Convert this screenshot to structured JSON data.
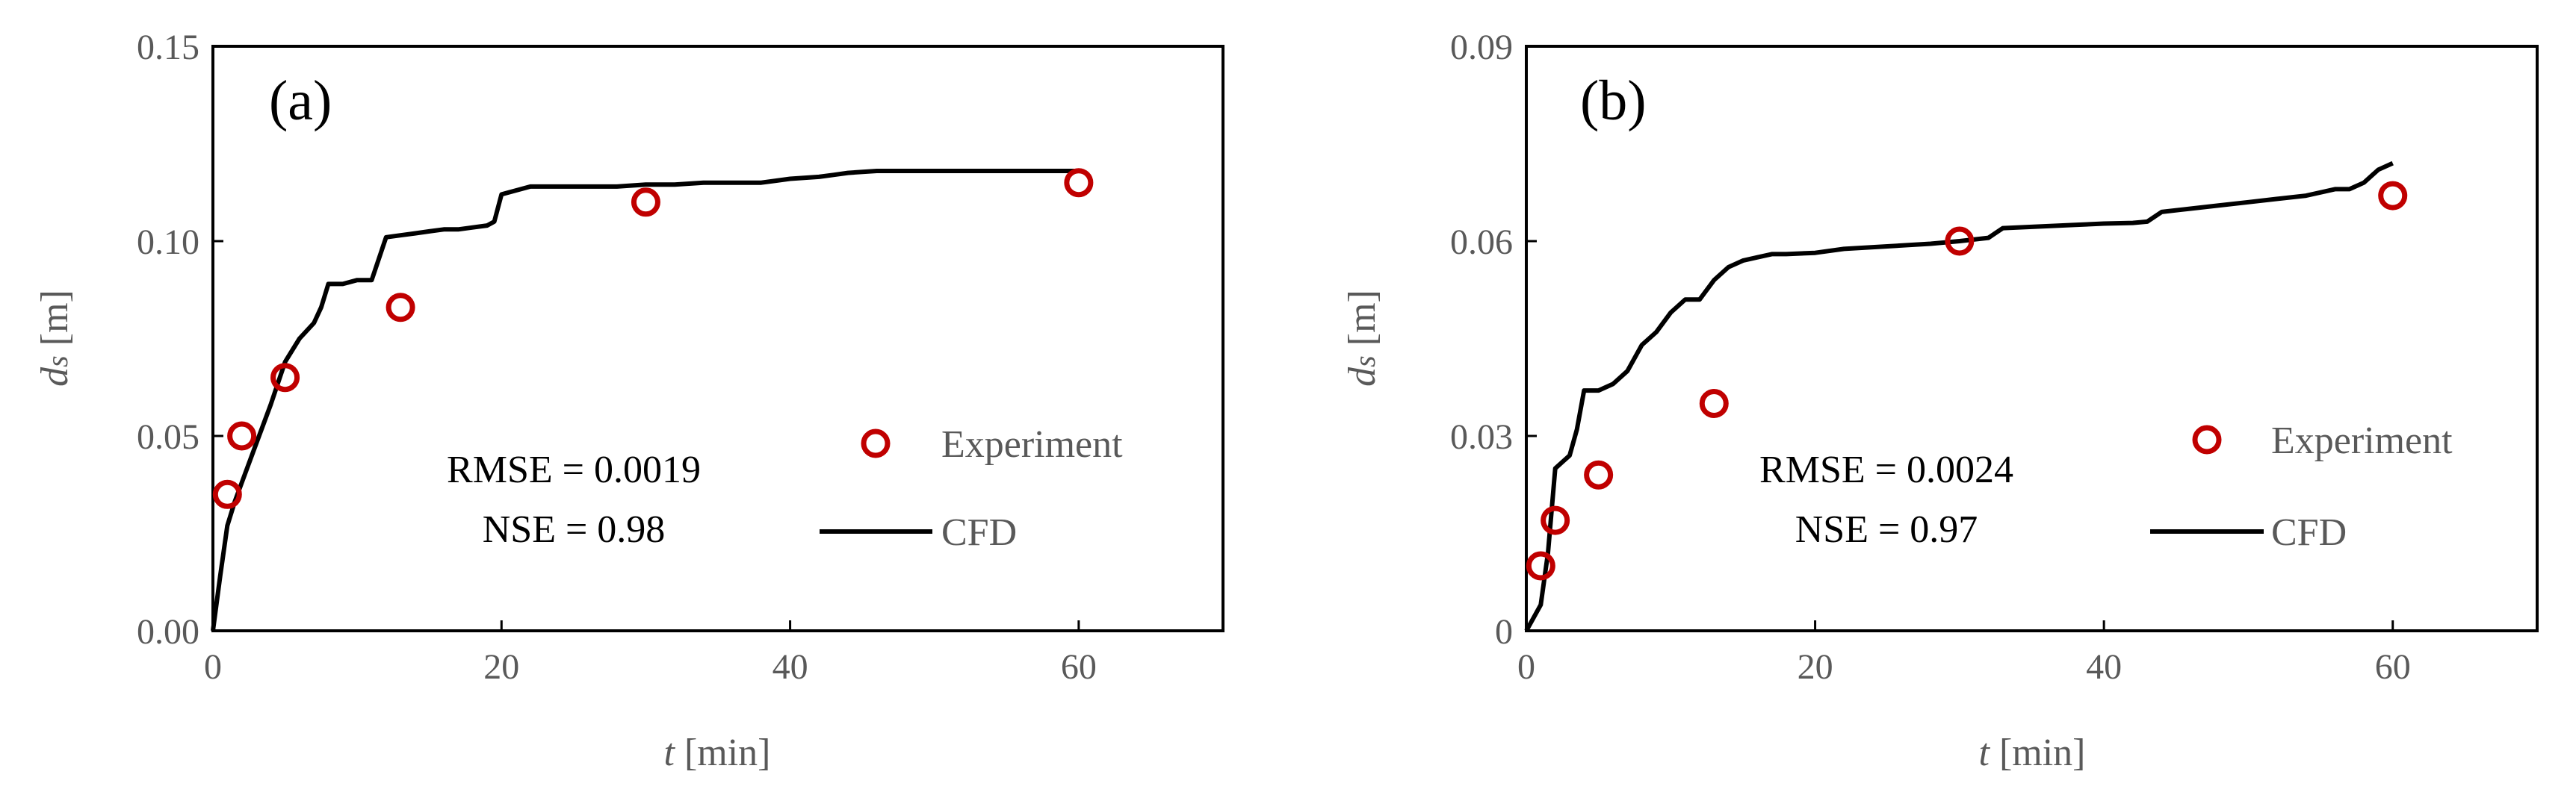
{
  "colors": {
    "experiment": "#C00000",
    "cfd": "#000000",
    "tick_text": "#595959",
    "frame": "#000000"
  },
  "chart_data": [
    {
      "type": "line",
      "panel_label": "(a)",
      "xlabel_italic": "t",
      "xlabel_rest": " [min]",
      "ylabel_italic": "d",
      "ylabel_sub": "s",
      "ylabel_rest": " [m]",
      "xlim": [
        0,
        70
      ],
      "ylim": [
        0,
        0.15
      ],
      "xticks": [
        0,
        20,
        40,
        60
      ],
      "xtick_labels": [
        "0",
        "20",
        "40",
        "60"
      ],
      "yticks": [
        0,
        0.05,
        0.1,
        0.15
      ],
      "ytick_labels": [
        "0.00",
        "0.05",
        "0.10",
        "0.15"
      ],
      "annotation_rmse": "RMSE = 0.0019",
      "annotation_nse": "NSE = 0.98",
      "legend": {
        "experiment": "Experiment",
        "cfd": "CFD"
      },
      "series": [
        {
          "name": "Experiment",
          "kind": "scatter",
          "x": [
            1,
            2,
            5,
            13,
            30,
            60
          ],
          "y": [
            0.035,
            0.05,
            0.065,
            0.083,
            0.11,
            0.115
          ]
        },
        {
          "name": "CFD",
          "kind": "line",
          "x": [
            0,
            0.5,
            1,
            1.5,
            2,
            3,
            4,
            5,
            6,
            6.5,
            7,
            7.5,
            8,
            9,
            10,
            10.5,
            11,
            12,
            13,
            14,
            15,
            16,
            17,
            18,
            19,
            19.5,
            20,
            21,
            22,
            25,
            28,
            30,
            32,
            34,
            36,
            38,
            39,
            40,
            42,
            43,
            44,
            46,
            50,
            55,
            60
          ],
          "y": [
            0,
            0.014,
            0.027,
            0.033,
            0.038,
            0.048,
            0.058,
            0.069,
            0.075,
            0.077,
            0.079,
            0.083,
            0.089,
            0.089,
            0.09,
            0.09,
            0.09,
            0.101,
            0.1015,
            0.102,
            0.1025,
            0.103,
            0.103,
            0.1035,
            0.104,
            0.105,
            0.112,
            0.113,
            0.114,
            0.114,
            0.114,
            0.1145,
            0.1145,
            0.115,
            0.115,
            0.115,
            0.1155,
            0.116,
            0.1165,
            0.117,
            0.1175,
            0.118,
            0.118,
            0.118,
            0.118
          ]
        }
      ]
    },
    {
      "type": "line",
      "panel_label": "(b)",
      "xlabel_italic": "t",
      "xlabel_rest": " [min]",
      "ylabel_italic": "d",
      "ylabel_sub": "s",
      "ylabel_rest": " [m]",
      "xlim": [
        0,
        70
      ],
      "ylim": [
        0,
        0.09
      ],
      "xticks": [
        0,
        20,
        40,
        60
      ],
      "xtick_labels": [
        "0",
        "20",
        "40",
        "60"
      ],
      "yticks": [
        0,
        0.03,
        0.06,
        0.09
      ],
      "ytick_labels": [
        "0",
        "0.03",
        "0.06",
        "0.09"
      ],
      "annotation_rmse": "RMSE = 0.0024",
      "annotation_nse": "NSE = 0.97",
      "legend": {
        "experiment": "Experiment",
        "cfd": "CFD"
      },
      "series": [
        {
          "name": "Experiment",
          "kind": "scatter",
          "x": [
            1,
            2,
            5,
            13,
            30,
            60
          ],
          "y": [
            0.01,
            0.017,
            0.024,
            0.035,
            0.06,
            0.067
          ]
        },
        {
          "name": "CFD",
          "kind": "line",
          "x": [
            0,
            0.5,
            1,
            1.5,
            2,
            2.5,
            3,
            3.5,
            4,
            5,
            6,
            7,
            8,
            9,
            10,
            11,
            12,
            13,
            14,
            15,
            16,
            17,
            18,
            20,
            22,
            25,
            28,
            30,
            32,
            33,
            35,
            38,
            40,
            42,
            43,
            44,
            46,
            48,
            50,
            52,
            54,
            56,
            57,
            58,
            59,
            60
          ],
          "y": [
            0,
            0.002,
            0.004,
            0.012,
            0.025,
            0.026,
            0.027,
            0.031,
            0.037,
            0.037,
            0.038,
            0.04,
            0.044,
            0.046,
            0.049,
            0.051,
            0.051,
            0.054,
            0.056,
            0.057,
            0.0575,
            0.058,
            0.058,
            0.0582,
            0.0588,
            0.0592,
            0.0596,
            0.06,
            0.0605,
            0.062,
            0.0622,
            0.0625,
            0.0627,
            0.0628,
            0.063,
            0.0645,
            0.065,
            0.0655,
            0.066,
            0.0665,
            0.067,
            0.068,
            0.068,
            0.069,
            0.071,
            0.072
          ]
        }
      ]
    }
  ]
}
